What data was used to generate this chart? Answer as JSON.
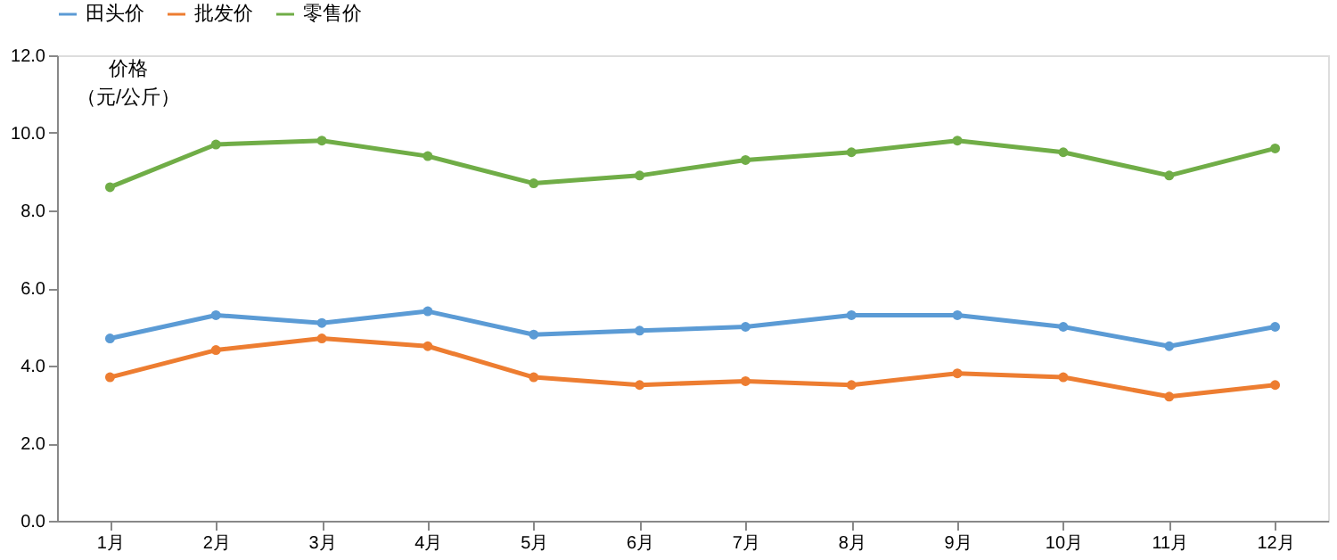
{
  "chart_data": {
    "type": "line",
    "ylabel": "价格（元/公斤）",
    "categories": [
      "1月",
      "2月",
      "3月",
      "4月",
      "5月",
      "6月",
      "7月",
      "8月",
      "9月",
      "10月",
      "11月",
      "12月"
    ],
    "series": [
      {
        "name": "田头价",
        "color": "#5b9bd5",
        "values": [
          4.7,
          5.3,
          5.1,
          5.4,
          4.8,
          4.9,
          5.0,
          5.3,
          5.3,
          5.0,
          4.5,
          5.0
        ]
      },
      {
        "name": "批发价",
        "color": "#ed7d31",
        "values": [
          3.7,
          4.4,
          4.7,
          4.5,
          3.7,
          3.5,
          3.6,
          3.5,
          3.8,
          3.7,
          3.2,
          3.5
        ]
      },
      {
        "name": "零售价",
        "color": "#70ad47",
        "values": [
          8.6,
          9.7,
          9.8,
          9.4,
          8.7,
          8.9,
          9.3,
          9.5,
          9.8,
          9.5,
          8.9,
          9.6
        ]
      }
    ],
    "ylim": [
      0,
      12
    ],
    "yticks": [
      {
        "value": 0,
        "label": "0.0"
      },
      {
        "value": 2,
        "label": "2.0"
      },
      {
        "value": 4,
        "label": "4.0"
      },
      {
        "value": 6,
        "label": "6.0"
      },
      {
        "value": 8,
        "label": "8.0"
      },
      {
        "value": 10,
        "label": "10.0"
      },
      {
        "value": 12,
        "label": "12.0"
      }
    ],
    "legend": "top",
    "marker": "circle",
    "line_style": "solid",
    "grid": false
  }
}
